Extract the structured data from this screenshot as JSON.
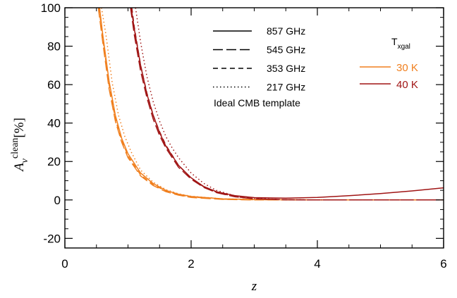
{
  "chart_data": {
    "type": "line",
    "xlabel": "z",
    "ylabel_main": "A",
    "ylabel_sub": "ν",
    "ylabel_sup": "clean",
    "ylabel_unit": "[%]",
    "xlim": [
      0,
      6
    ],
    "ylim": [
      -25,
      100
    ],
    "x_ticks": [
      0,
      2,
      4,
      6
    ],
    "y_ticks": [
      -20,
      0,
      20,
      40,
      60,
      80,
      100
    ],
    "x_tick_labels": [
      "0",
      "2",
      "4",
      "6"
    ],
    "y_tick_labels": [
      "-20",
      "0",
      "20",
      "40",
      "60",
      "80",
      "100"
    ],
    "grid": false,
    "legend_frequency": {
      "placement": "top-center",
      "entries": [
        {
          "label": "857 GHz",
          "style": "solid"
        },
        {
          "label": "545 GHz",
          "style": "long-dash"
        },
        {
          "label": "353 GHz",
          "style": "dash"
        },
        {
          "label": "217 GHz",
          "style": "dotted"
        }
      ],
      "note": "Ideal CMB template"
    },
    "legend_temperature": {
      "placement": "top-right",
      "title_main": "T",
      "title_sub": "xgal",
      "entries": [
        {
          "label": "30 K",
          "color": "#f07f1e"
        },
        {
          "label": "40 K",
          "color": "#a01414"
        }
      ]
    },
    "series": [
      {
        "name": "30 K, 857 GHz",
        "color": "#f07f1e",
        "style": "solid",
        "x": [
          0.55,
          0.6,
          0.7,
          0.8,
          0.9,
          1.0,
          1.2,
          1.4,
          1.6,
          1.8,
          2.0,
          2.5,
          3.0,
          4.0,
          5.0,
          6.0
        ],
        "y": [
          100,
          86,
          62,
          44,
          32,
          24,
          14,
          8.5,
          5,
          3,
          1.8,
          0.6,
          0.2,
          0,
          0,
          0
        ]
      },
      {
        "name": "30 K, 545 GHz",
        "color": "#f07f1e",
        "style": "long-dash",
        "x": [
          0.53,
          0.6,
          0.7,
          0.8,
          0.9,
          1.0,
          1.2,
          1.4,
          1.6,
          1.8,
          2.0,
          2.5,
          3.0,
          4.0,
          5.0,
          6.0
        ],
        "y": [
          100,
          82,
          58,
          41,
          30,
          22,
          12.5,
          7.5,
          4.3,
          2.5,
          1.3,
          0.3,
          0,
          0,
          0,
          0
        ]
      },
      {
        "name": "30 K, 353 GHz",
        "color": "#f07f1e",
        "style": "dash",
        "x": [
          0.54,
          0.6,
          0.7,
          0.8,
          0.9,
          1.0,
          1.2,
          1.4,
          1.6,
          1.8,
          2.0,
          2.5,
          3.0,
          4.0,
          5.0,
          6.0
        ],
        "y": [
          100,
          84,
          60,
          42,
          31,
          23,
          13,
          8,
          4.6,
          2.7,
          1.5,
          0.4,
          0.1,
          0,
          0,
          0
        ]
      },
      {
        "name": "30 K, 217 GHz",
        "color": "#f07f1e",
        "style": "dotted",
        "x": [
          0.58,
          0.65,
          0.75,
          0.85,
          0.95,
          1.05,
          1.2,
          1.4,
          1.6,
          1.8,
          2.0,
          2.5,
          3.0,
          4.0,
          5.0,
          6.0
        ],
        "y": [
          100,
          86,
          61,
          44,
          33,
          25,
          15.5,
          9.2,
          5.4,
          3.2,
          1.9,
          0.6,
          0.2,
          0,
          0,
          0
        ]
      },
      {
        "name": "40 K, 857 GHz",
        "color": "#a01414",
        "style": "solid",
        "x": [
          1.05,
          1.1,
          1.2,
          1.3,
          1.4,
          1.5,
          1.6,
          1.8,
          2.0,
          2.2,
          2.4,
          2.7,
          3.0,
          3.5,
          4.0,
          4.5,
          5.0,
          5.5,
          6.0
        ],
        "y": [
          100,
          89,
          70,
          55,
          44,
          35,
          28,
          18,
          11.5,
          7,
          4.3,
          2.2,
          1.2,
          0.9,
          1.3,
          2.2,
          3.3,
          4.7,
          6.3
        ]
      },
      {
        "name": "40 K, 545 GHz",
        "color": "#a01414",
        "style": "long-dash",
        "x": [
          1.04,
          1.1,
          1.2,
          1.3,
          1.4,
          1.5,
          1.6,
          1.8,
          2.0,
          2.2,
          2.4,
          2.7,
          3.0,
          3.5,
          4.0,
          5.0,
          6.0
        ],
        "y": [
          100,
          86,
          67,
          53,
          42,
          33.5,
          27,
          17,
          10.8,
          6.5,
          3.8,
          1.6,
          0.6,
          0.1,
          0,
          0,
          0
        ]
      },
      {
        "name": "40 K, 353 GHz",
        "color": "#a01414",
        "style": "dash",
        "x": [
          1.06,
          1.1,
          1.2,
          1.3,
          1.4,
          1.5,
          1.6,
          1.8,
          2.0,
          2.2,
          2.4,
          2.7,
          3.0,
          3.5,
          4.0,
          5.0,
          6.0
        ],
        "y": [
          100,
          90,
          70,
          55.5,
          44,
          35.5,
          28.5,
          18,
          11.4,
          6.8,
          4,
          1.7,
          0.6,
          0.1,
          0,
          0,
          0
        ]
      },
      {
        "name": "40 K, 217 GHz",
        "color": "#a01414",
        "style": "dotted",
        "x": [
          1.12,
          1.2,
          1.3,
          1.4,
          1.5,
          1.6,
          1.7,
          1.8,
          2.0,
          2.2,
          2.4,
          2.7,
          3.0,
          3.5,
          4.0,
          5.0,
          6.0
        ],
        "y": [
          100,
          82,
          64,
          51,
          41,
          33,
          27,
          22,
          14,
          8.6,
          5,
          2.1,
          0.8,
          0.1,
          0,
          0,
          0
        ]
      }
    ]
  }
}
